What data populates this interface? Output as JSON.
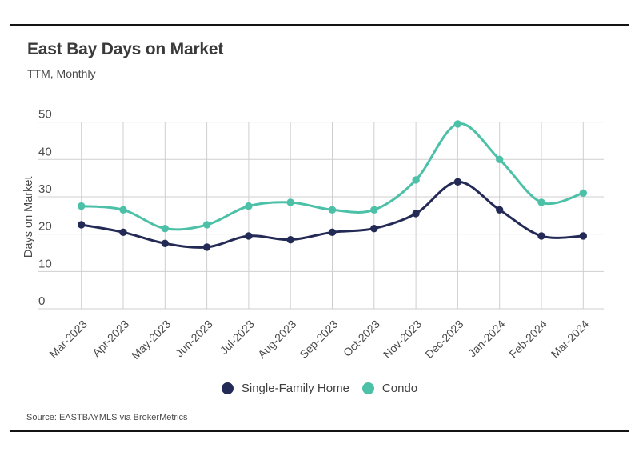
{
  "page": {
    "title": "East Bay Days on Market",
    "subtitle": "TTM, Monthly",
    "source": "Source: EASTBAYMLS via BrokerMetrics"
  },
  "colors": {
    "single_family": "#242a56",
    "condo": "#4dc0a8",
    "grid": "#cfcfcf",
    "axis_text": "#4a4a4a",
    "rule": "#141414"
  },
  "chart_data": {
    "type": "line",
    "title": "East Bay Days on Market",
    "subtitle": "TTM, Monthly",
    "xlabel": "",
    "ylabel": "Days on Market",
    "ylim": [
      0,
      50
    ],
    "yticks": [
      0,
      10,
      20,
      30,
      40,
      50
    ],
    "grid": true,
    "legend_position": "bottom",
    "marker": "circle",
    "curve": "smooth",
    "categories": [
      "Mar-2023",
      "Apr-2023",
      "May-2023",
      "Jun-2023",
      "Jul-2023",
      "Aug-2023",
      "Sep-2023",
      "Oct-2023",
      "Nov-2023",
      "Dec-2023",
      "Jan-2024",
      "Feb-2024",
      "Mar-2024"
    ],
    "series": [
      {
        "name": "Single-Family Home",
        "color": "#242a56",
        "values": [
          22.5,
          20.5,
          17.5,
          16.5,
          19.5,
          18.5,
          20.5,
          21.5,
          25.5,
          34,
          26.5,
          19.5,
          19.5
        ]
      },
      {
        "name": "Condo",
        "color": "#4dc0a8",
        "values": [
          27.5,
          26.5,
          21.5,
          22.5,
          27.5,
          28.5,
          26.5,
          26.5,
          34.5,
          49.5,
          40,
          28.5,
          31
        ]
      }
    ]
  }
}
